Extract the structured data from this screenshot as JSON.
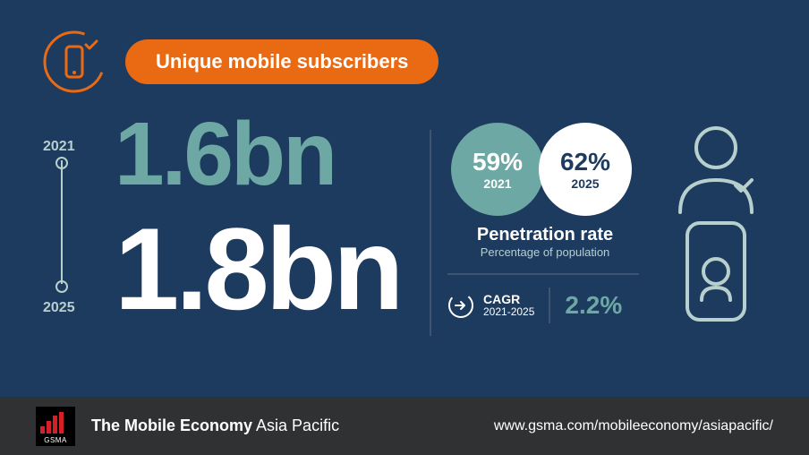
{
  "colors": {
    "bg_main": "#1d3a5f",
    "bg_footer": "#2f3133",
    "accent_orange": "#e96a13",
    "accent_teal": "#6da8a4",
    "accent_light": "#b7d0cd",
    "white": "#ffffff",
    "logo_red": "#d62027",
    "logo_black": "#000000",
    "divider": "#3e5572"
  },
  "header": {
    "title": "Unique mobile subscribers"
  },
  "subscribers": {
    "year1_label": "2021",
    "year1_value": "1.6bn",
    "year2_label": "2025",
    "year2_value": "1.8bn"
  },
  "penetration": {
    "circle1_pct": "59%",
    "circle1_year": "2021",
    "circle2_pct": "62%",
    "circle2_year": "2025",
    "title": "Penetration rate",
    "subtitle": "Percentage of population"
  },
  "cagr": {
    "label": "CAGR",
    "period": "2021-2025",
    "value": "2.2%"
  },
  "footer": {
    "logo_bar_heights": [
      8,
      14,
      20,
      24
    ],
    "logo_text": "GSMA",
    "title_bold": "The Mobile Economy",
    "title_light": " Asia Pacific",
    "url": "www.gsma.com/mobileeconomy/asiapacific/"
  }
}
